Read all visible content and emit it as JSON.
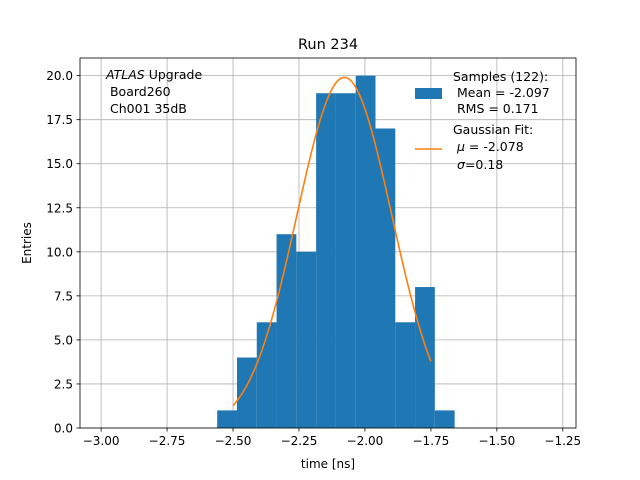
{
  "chart_data": {
    "type": "bar",
    "title": "Run 234",
    "xlabel": "time [ns]",
    "ylabel": "Entries",
    "xlim": [
      -3.08,
      -1.2
    ],
    "ylim": [
      0,
      21
    ],
    "grid": true,
    "x_ticks": [
      -3.0,
      -2.75,
      -2.5,
      -2.25,
      -2.0,
      -1.75,
      -1.5,
      -1.25
    ],
    "x_tick_labels": [
      "−3.00",
      "−2.75",
      "−2.50",
      "−2.25",
      "−2.00",
      "−1.75",
      "−1.50",
      "−1.25"
    ],
    "y_ticks": [
      0,
      2.5,
      5,
      7.5,
      10,
      12.5,
      15,
      17.5,
      20
    ],
    "y_tick_labels": [
      "0.0",
      "2.5",
      "5.0",
      "7.5",
      "10.0",
      "12.5",
      "15.0",
      "17.5",
      "20.0"
    ],
    "histogram": {
      "color": "#1f77b4",
      "bin_width": 0.075,
      "bin_left_edges": [
        -2.56,
        -2.485,
        -2.41,
        -2.335,
        -2.26,
        -2.185,
        -2.11,
        -2.035,
        -1.96,
        -1.885,
        -1.81,
        -1.735
      ],
      "counts": [
        1,
        4,
        6,
        11,
        10,
        19,
        19,
        20,
        17,
        6,
        8,
        1
      ]
    },
    "gaussian_fit": {
      "color": "#ff7f0e",
      "amplitude": 19.9,
      "mu": -2.078,
      "sigma": 0.18,
      "x_range": [
        -2.5,
        -1.75
      ]
    },
    "annotation": {
      "line1_italic": "ATLAS",
      "line1_rest": " Upgrade",
      "line2": " Board260",
      "line3": " Ch001 35dB"
    },
    "legend": {
      "position": "top-right",
      "samples_line1": "Samples (122):",
      "samples_line2": " Mean = -2.097",
      "samples_line3": " RMS = 0.171",
      "fit_line1": "Gaussian Fit:",
      "fit_mu_symbol": "μ",
      "fit_mu_rest": " = -2.078",
      "fit_sigma_symbol": "σ",
      "fit_sigma_rest": "=0.18"
    }
  }
}
